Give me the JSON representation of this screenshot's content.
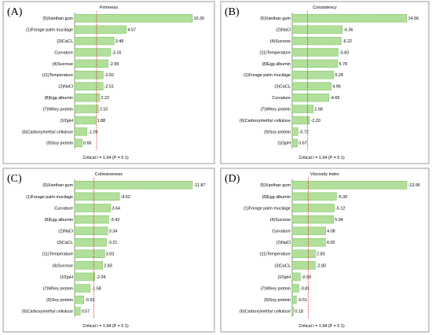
{
  "critical_label": "Critical t = 1.94 (P = 0.1)",
  "colors": {
    "bar": "#7ec95a",
    "bar_light": "#e6f5dc",
    "critical_line": "#d22222",
    "frame": "#9a9a9a"
  },
  "chart_data": [
    {
      "type": "bar",
      "orientation": "horizontal",
      "panel": "(A)",
      "title": "Firmness",
      "critical_t": 1.94,
      "xlim": [
        0,
        10.39
      ],
      "categories": [
        "(5)Xanthan gum",
        "(1)Forage palm mucilage",
        "(3)CaCl₂",
        "Curvature",
        "(4)Sucrose",
        "(11)Temperature",
        "(2)NaCl",
        "(8)Egg albumin",
        "(7)Whey protein",
        "(10)pH",
        "(6)Carboxymethyl cellulose",
        "(9)Soy protein"
      ],
      "values": [
        10.39,
        4.57,
        3.48,
        3.16,
        2.95,
        2.52,
        2.51,
        2.22,
        2.1,
        1.88,
        1.09,
        0.66
      ],
      "labels": [
        "10.39",
        "4.57",
        "3.48",
        "-3.16",
        "-2.95",
        "-2.52",
        "-2.51",
        "2.22",
        "2.10",
        "1.88",
        "-1.09",
        "0.66"
      ]
    },
    {
      "type": "bar",
      "orientation": "horizontal",
      "panel": "(B)",
      "title": "Consistency",
      "critical_t": 1.94,
      "xlim": [
        0,
        14.56
      ],
      "categories": [
        "(5)Xanthan gum",
        "(2)NaCl",
        "(4)Sucrose",
        "(11)Temperature",
        "(8)Egg albumin",
        "(1)Forage palm mucilage",
        "(3)CaCl₂",
        "Curvature",
        "(7)Whey protein",
        "(6)Carboxymethyl cellulose",
        "(9)Soy protein",
        "(10)pH"
      ],
      "values": [
        14.56,
        6.36,
        6.22,
        5.83,
        5.78,
        5.28,
        4.96,
        4.65,
        2.68,
        2.2,
        0.72,
        0.67
      ],
      "labels": [
        "14.56",
        "-6.36",
        "-6.22",
        "-5.83",
        "5.78",
        "5.28",
        "4.96",
        "-4.65",
        "2.68",
        "-2.20",
        "-0.72",
        "0.67"
      ]
    },
    {
      "type": "bar",
      "orientation": "horizontal",
      "panel": "(C)",
      "title": "Cohesiveness",
      "critical_t": 1.94,
      "xlim": [
        0,
        11.87
      ],
      "categories": [
        "(5)Xanthan gum",
        "(1)Forage palm mucilage",
        "Curvature",
        "(8)Egg albumin",
        "(2)NaCl",
        "(3)CaCl₂",
        "(11)Temperature",
        "(4)Sucrose",
        "(10)pH",
        "(7)Whey protein",
        "(9)Soy protein",
        "(6)Carboxymethyl cellulose"
      ],
      "values": [
        11.87,
        4.52,
        3.64,
        3.43,
        3.34,
        3.21,
        3.03,
        2.83,
        2.04,
        1.58,
        0.93,
        0.57
      ],
      "labels": [
        "-11.87",
        "-4.52",
        "3.64",
        "-3.43",
        "3.34",
        "-3.21",
        "3.03",
        "2.83",
        "-2.04",
        "-1.58",
        "-0.93",
        "0.57"
      ]
    },
    {
      "type": "bar",
      "orientation": "horizontal",
      "panel": "(D)",
      "title": "Viscosity index",
      "critical_t": 1.94,
      "xlim": [
        0,
        13.96
      ],
      "categories": [
        "(5)Xanthan gum",
        "(8)Egg albumin",
        "(1)Forage palm mucilage",
        "(4)Sucrose",
        "Curvature",
        "(2)NaCl",
        "(11)Temperature",
        "(3)CaCl₂",
        "(10)pH",
        "(7)Whey protein",
        "(9)Soy protein",
        "(6)Carboxymethyl cellulose"
      ],
      "values": [
        13.96,
        5.39,
        5.12,
        5.04,
        4.08,
        4.05,
        2.83,
        2.8,
        0.99,
        0.81,
        0.51,
        0.18
      ],
      "labels": [
        "-13.96",
        "-5.39",
        "-5.12",
        "5.04",
        "4.08",
        "4.05",
        "2.83",
        "-2.80",
        "-0.99",
        "-0.81",
        "-0.51",
        "0.18"
      ]
    }
  ]
}
